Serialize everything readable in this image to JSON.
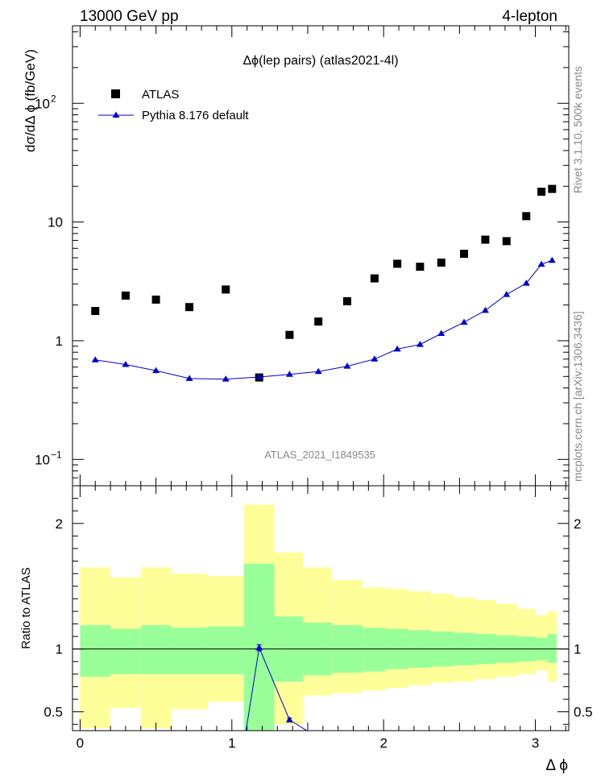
{
  "header": {
    "left": "13000 GeV pp",
    "right": "4-lepton"
  },
  "side_text": {
    "top": "Rivet 3.1.10,  500k events",
    "bottom": "mcplots.cern.ch [arXiv:1306.3436]"
  },
  "colors": {
    "data": "#000000",
    "mc": "#0000cc",
    "band_inner": "#99ff99",
    "band_outer": "#ffff99"
  },
  "chart_data": [
    {
      "type": "scatter",
      "title": "Δϕ(lep pairs) (atlas2021-4l)",
      "ylabel": "dσ/dΔ ϕ (fb/GeV)",
      "xlabel": "",
      "yscale": "log",
      "xlim": [
        -0.05,
        3.22
      ],
      "ylim": [
        0.06,
        450
      ],
      "watermark": "ATLAS_2021_I1849535",
      "ytick_labels": [
        {
          "value": 0.1,
          "base": "10",
          "exp": "−1"
        },
        {
          "value": 1,
          "base": "1",
          "exp": ""
        },
        {
          "value": 10,
          "base": "10",
          "exp": ""
        },
        {
          "value": 100,
          "base": "10",
          "exp": "2"
        }
      ],
      "legend": {
        "position": "top-left",
        "entries": [
          "ATLAS",
          "Pythia 8.176 default"
        ]
      },
      "series": [
        {
          "name": "ATLAS",
          "marker": "square",
          "x": [
            0.1,
            0.3,
            0.5,
            0.72,
            0.96,
            1.18,
            1.38,
            1.57,
            1.76,
            1.94,
            2.09,
            2.24,
            2.38,
            2.53,
            2.67,
            2.81,
            2.94,
            3.04,
            3.11
          ],
          "y": [
            1.78,
            2.4,
            2.22,
            1.92,
            2.7,
            0.49,
            1.12,
            1.45,
            2.15,
            3.35,
            4.45,
            4.2,
            4.55,
            5.4,
            7.1,
            6.9,
            11.2,
            18.0,
            19.0
          ]
        },
        {
          "name": "Pythia 8.176 default",
          "marker": "triangle",
          "x": [
            0.1,
            0.3,
            0.5,
            0.72,
            0.96,
            1.18,
            1.38,
            1.57,
            1.76,
            1.94,
            2.09,
            2.24,
            2.38,
            2.53,
            2.67,
            2.81,
            2.94,
            3.04,
            3.11
          ],
          "y": [
            0.69,
            0.63,
            0.56,
            0.48,
            0.475,
            0.495,
            0.52,
            0.55,
            0.61,
            0.7,
            0.85,
            0.93,
            1.15,
            1.43,
            1.8,
            2.45,
            3.05,
            4.4,
            4.75
          ]
        }
      ]
    },
    {
      "type": "line",
      "title": "",
      "ylabel": "Ratio to ATLAS",
      "xlabel": "Δ ϕ",
      "xlim": [
        -0.05,
        3.22
      ],
      "ylim": [
        0.35,
        2.3
      ],
      "xticks": [
        0,
        1,
        2,
        3
      ],
      "yticks": [
        0.5,
        1,
        2
      ],
      "reference_line": 1,
      "bins": [
        {
          "lo": 0.0,
          "hi": 0.2,
          "inner": [
            0.78,
            1.19
          ],
          "outer": [
            0.37,
            1.65
          ]
        },
        {
          "lo": 0.2,
          "hi": 0.4,
          "inner": [
            0.8,
            1.16
          ],
          "outer": [
            0.53,
            1.57
          ]
        },
        {
          "lo": 0.4,
          "hi": 0.6,
          "inner": [
            0.8,
            1.19
          ],
          "outer": [
            0.37,
            1.65
          ]
        },
        {
          "lo": 0.6,
          "hi": 0.84,
          "inner": [
            0.8,
            1.17
          ],
          "outer": [
            0.52,
            1.6
          ]
        },
        {
          "lo": 0.84,
          "hi": 1.08,
          "inner": [
            0.8,
            1.18
          ],
          "outer": [
            0.58,
            1.58
          ]
        },
        {
          "lo": 1.08,
          "hi": 1.28,
          "inner": [
            0.35,
            1.68
          ],
          "outer": [
            0.35,
            2.15
          ]
        },
        {
          "lo": 1.28,
          "hi": 1.47,
          "inner": [
            0.74,
            1.26
          ],
          "outer": [
            0.4,
            1.77
          ]
        },
        {
          "lo": 1.47,
          "hi": 1.66,
          "inner": [
            0.79,
            1.21
          ],
          "outer": [
            0.63,
            1.65
          ]
        },
        {
          "lo": 1.66,
          "hi": 1.86,
          "inner": [
            0.81,
            1.19
          ],
          "outer": [
            0.65,
            1.55
          ]
        },
        {
          "lo": 1.86,
          "hi": 2.01,
          "inner": [
            0.82,
            1.17
          ],
          "outer": [
            0.67,
            1.49
          ]
        },
        {
          "lo": 2.01,
          "hi": 2.16,
          "inner": [
            0.84,
            1.16
          ],
          "outer": [
            0.69,
            1.48
          ]
        },
        {
          "lo": 2.16,
          "hi": 2.31,
          "inner": [
            0.85,
            1.15
          ],
          "outer": [
            0.71,
            1.46
          ]
        },
        {
          "lo": 2.31,
          "hi": 2.46,
          "inner": [
            0.86,
            1.14
          ],
          "outer": [
            0.73,
            1.44
          ]
        },
        {
          "lo": 2.46,
          "hi": 2.6,
          "inner": [
            0.87,
            1.13
          ],
          "outer": [
            0.74,
            1.41
          ]
        },
        {
          "lo": 2.6,
          "hi": 2.74,
          "inner": [
            0.88,
            1.12
          ],
          "outer": [
            0.76,
            1.39
          ]
        },
        {
          "lo": 2.74,
          "hi": 2.88,
          "inner": [
            0.89,
            1.11
          ],
          "outer": [
            0.78,
            1.36
          ]
        },
        {
          "lo": 2.88,
          "hi": 3.0,
          "inner": [
            0.9,
            1.1
          ],
          "outer": [
            0.8,
            1.32
          ]
        },
        {
          "lo": 3.0,
          "hi": 3.08,
          "inner": [
            0.91,
            1.09
          ],
          "outer": [
            0.83,
            1.27
          ]
        },
        {
          "lo": 3.08,
          "hi": 3.14,
          "inner": [
            0.89,
            1.12
          ],
          "outer": [
            0.74,
            1.3
          ]
        }
      ],
      "series": [
        {
          "name": "Pythia 8.176 default / ATLAS",
          "x": [
            1.08,
            1.18,
            1.38,
            1.52
          ],
          "y": [
            0.25,
            1.01,
            0.435,
            0.33
          ],
          "err": [
            0,
            0.025,
            0.015,
            0
          ]
        }
      ]
    }
  ]
}
